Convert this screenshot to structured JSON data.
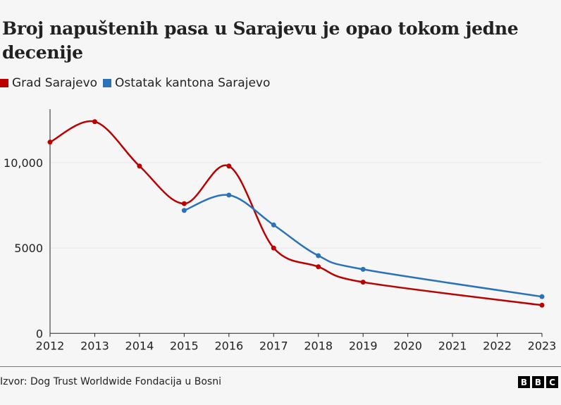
{
  "title": "Broj napuštenih pasa u Sarajevu je opao tokom jedne decenije",
  "source": "Izvor: Dog Trust Worldwide Fondacija u Bosni",
  "logo": "BBC",
  "chart_data": {
    "type": "line",
    "title": "Broj napuštenih pasa u Sarajevu je opao tokom jedne decenije",
    "x": [
      2012,
      2013,
      2014,
      2015,
      2016,
      2017,
      2018,
      2019,
      2020,
      2021,
      2022,
      2023
    ],
    "xlim": [
      2012,
      2023
    ],
    "ylim": [
      0,
      13000
    ],
    "yticks": [
      0,
      5000,
      10000
    ],
    "ytick_labels": [
      "0",
      "5000",
      "10,000"
    ],
    "grid": true,
    "legend": "top-left",
    "series": [
      {
        "name": "Grad Sarajevo",
        "color": "#bb0000",
        "points": [
          [
            2012,
            11200
          ],
          [
            2013,
            12400
          ],
          [
            2014,
            9800
          ],
          [
            2015,
            7600
          ],
          [
            2016,
            9800
          ],
          [
            2017,
            5000
          ],
          [
            2018,
            3900
          ],
          [
            2019,
            3000
          ],
          [
            2023,
            1650
          ]
        ]
      },
      {
        "name": "Ostatak kantona Sarajevo",
        "color": "#2b72b8",
        "points": [
          [
            2015,
            7200
          ],
          [
            2016,
            8100
          ],
          [
            2017,
            6350
          ],
          [
            2018,
            4550
          ],
          [
            2019,
            3750
          ],
          [
            2023,
            2150
          ]
        ]
      }
    ]
  }
}
